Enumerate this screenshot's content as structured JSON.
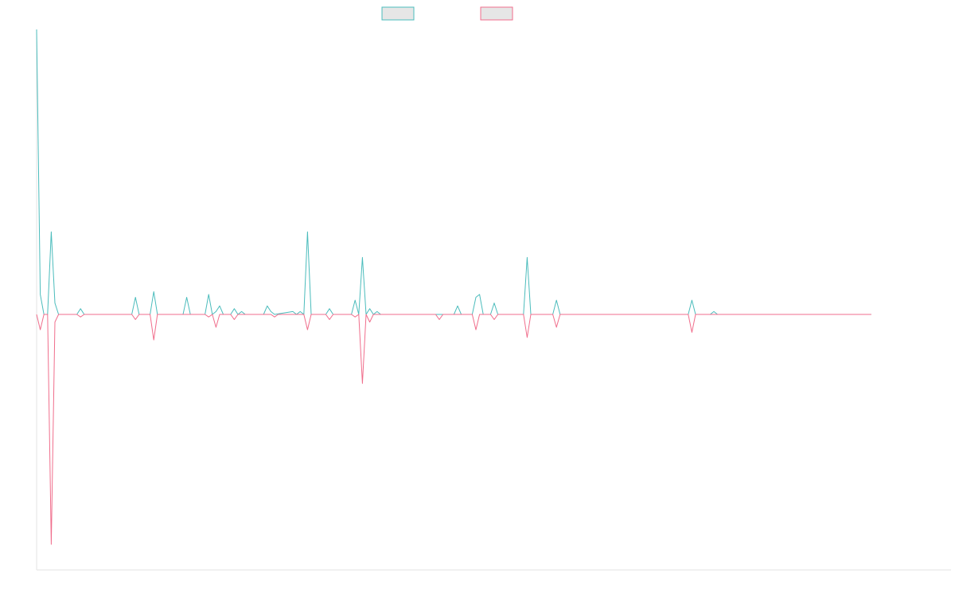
{
  "chart_data": {
    "type": "line",
    "title": "",
    "xlabel": "",
    "ylabel": "",
    "legend_placement": "top-center",
    "grid": false,
    "ylim": [
      -100,
      100
    ],
    "x_count": 130,
    "series": [
      {
        "name": "",
        "color": "#4bbcbc",
        "fill_color": "#e6e6e6",
        "points": [
          [
            0,
            100
          ],
          [
            1,
            7
          ],
          [
            2,
            0
          ],
          [
            3,
            0
          ],
          [
            4,
            29
          ],
          [
            5,
            4
          ],
          [
            6,
            0
          ],
          [
            11,
            0
          ],
          [
            12,
            2
          ],
          [
            13,
            0
          ],
          [
            26,
            0
          ],
          [
            27,
            6
          ],
          [
            28,
            0
          ],
          [
            31,
            0
          ],
          [
            32,
            8
          ],
          [
            33,
            0
          ],
          [
            40,
            0
          ],
          [
            41,
            6
          ],
          [
            42,
            0
          ],
          [
            46,
            0
          ],
          [
            47,
            7
          ],
          [
            48,
            0
          ],
          [
            49,
            1
          ],
          [
            50,
            3
          ],
          [
            51,
            0
          ],
          [
            53,
            0
          ],
          [
            54,
            2
          ],
          [
            55,
            0
          ],
          [
            56,
            1
          ],
          [
            57,
            0
          ],
          [
            62,
            0
          ],
          [
            63,
            3
          ],
          [
            64,
            1
          ],
          [
            65,
            0
          ],
          [
            70,
            1
          ],
          [
            71,
            0
          ],
          [
            72,
            1
          ],
          [
            73,
            0
          ],
          [
            74,
            29
          ],
          [
            75,
            0
          ],
          [
            79,
            0
          ],
          [
            80,
            2
          ],
          [
            81,
            0
          ],
          [
            86,
            0
          ],
          [
            87,
            5
          ],
          [
            88,
            0
          ],
          [
            89,
            20
          ],
          [
            90,
            0
          ],
          [
            91,
            2
          ],
          [
            92,
            0
          ],
          [
            93,
            1
          ],
          [
            94,
            0
          ],
          [
            114,
            0
          ],
          [
            115,
            3
          ],
          [
            116,
            0
          ],
          [
            119,
            0
          ],
          [
            120,
            6
          ],
          [
            121,
            7
          ],
          [
            122,
            0
          ],
          [
            124,
            0
          ],
          [
            125,
            4
          ],
          [
            126,
            0
          ],
          [
            133,
            0
          ],
          [
            134,
            20
          ],
          [
            135,
            0
          ],
          [
            141,
            0
          ],
          [
            142,
            5
          ],
          [
            143,
            0
          ],
          [
            178,
            0
          ],
          [
            179,
            5
          ],
          [
            180,
            0
          ],
          [
            184,
            0
          ],
          [
            185,
            1
          ],
          [
            186,
            0
          ],
          [
            228,
            0
          ]
        ]
      },
      {
        "name": "",
        "color": "#f06e8c",
        "fill_color": "#e6e6e6",
        "points": [
          [
            0,
            0
          ],
          [
            1,
            -6
          ],
          [
            2,
            0
          ],
          [
            3,
            0
          ],
          [
            4,
            -90
          ],
          [
            5,
            -3
          ],
          [
            6,
            0
          ],
          [
            11,
            0
          ],
          [
            12,
            -1
          ],
          [
            13,
            0
          ],
          [
            26,
            0
          ],
          [
            27,
            -2
          ],
          [
            28,
            0
          ],
          [
            31,
            0
          ],
          [
            32,
            -10
          ],
          [
            33,
            0
          ],
          [
            46,
            0
          ],
          [
            47,
            -1
          ],
          [
            48,
            0
          ],
          [
            49,
            -5
          ],
          [
            50,
            0
          ],
          [
            53,
            0
          ],
          [
            54,
            -2
          ],
          [
            55,
            0
          ],
          [
            64,
            0
          ],
          [
            65,
            -1
          ],
          [
            66,
            0
          ],
          [
            73,
            0
          ],
          [
            74,
            -6
          ],
          [
            75,
            0
          ],
          [
            79,
            0
          ],
          [
            80,
            -2
          ],
          [
            81,
            0
          ],
          [
            86,
            0
          ],
          [
            87,
            -1
          ],
          [
            88,
            0
          ],
          [
            89,
            -27
          ],
          [
            90,
            0
          ],
          [
            91,
            -3
          ],
          [
            92,
            0
          ],
          [
            109,
            0
          ],
          [
            110,
            -2
          ],
          [
            111,
            0
          ],
          [
            119,
            0
          ],
          [
            120,
            -6
          ],
          [
            121,
            0
          ],
          [
            124,
            0
          ],
          [
            125,
            -2
          ],
          [
            126,
            0
          ],
          [
            133,
            0
          ],
          [
            134,
            -9
          ],
          [
            135,
            0
          ],
          [
            141,
            0
          ],
          [
            142,
            -5
          ],
          [
            143,
            0
          ],
          [
            178,
            0
          ],
          [
            179,
            -7
          ],
          [
            180,
            0
          ],
          [
            228,
            0
          ]
        ]
      }
    ]
  }
}
